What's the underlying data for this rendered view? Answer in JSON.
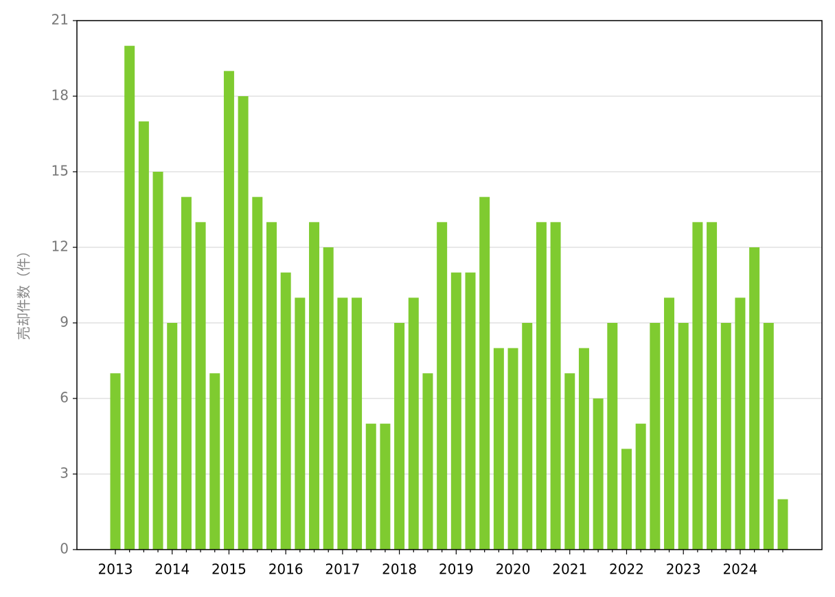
{
  "chart_data": {
    "type": "bar",
    "y_label": "売却件数（件）",
    "categories": [
      "2013",
      null,
      null,
      null,
      "2014",
      null,
      null,
      null,
      "2015",
      null,
      null,
      null,
      "2016",
      null,
      null,
      null,
      "2017",
      null,
      null,
      null,
      "2018",
      null,
      null,
      null,
      "2019",
      null,
      null,
      null,
      "2020",
      null,
      null,
      null,
      "2021",
      null,
      null,
      null,
      "2022",
      null,
      null,
      null,
      "2023",
      null,
      null,
      null,
      "2024",
      null,
      null,
      null
    ],
    "values": [
      7,
      20,
      17,
      15,
      9,
      14,
      13,
      7,
      19,
      18,
      14,
      13,
      11,
      10,
      13,
      12,
      10,
      10,
      5,
      5,
      9,
      10,
      7,
      13,
      11,
      11,
      14,
      8,
      8,
      9,
      13,
      13,
      7,
      8,
      6,
      9,
      4,
      5,
      9,
      10,
      9,
      13,
      13,
      9,
      10,
      12,
      9,
      2
    ],
    "color": "#7fcb30",
    "ylim": [
      0,
      21
    ],
    "yticks": [
      0,
      3,
      6,
      9,
      12,
      15,
      18,
      21
    ],
    "grid": true
  }
}
